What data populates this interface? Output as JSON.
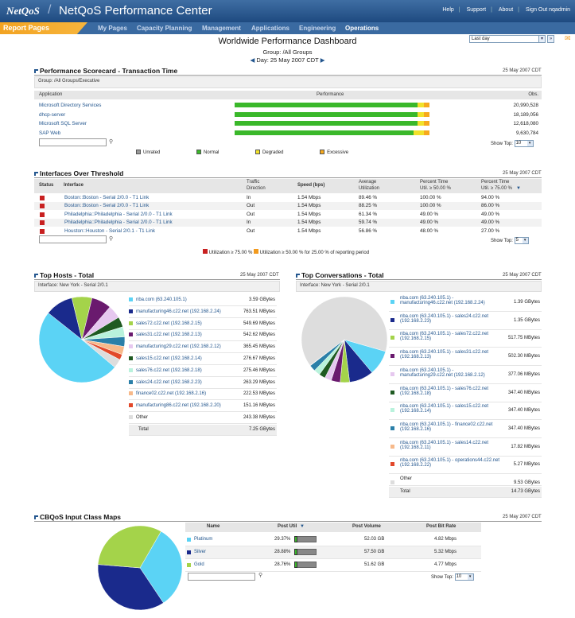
{
  "header": {
    "logo": "NetQoS",
    "title": "NetQoS Performance Center",
    "links": [
      "Help",
      "Support",
      "About",
      "Sign Out nqadmin"
    ]
  },
  "nav": {
    "report_pages": "Report Pages",
    "items": [
      "My Pages",
      "Capacity Planning",
      "Management",
      "Applications",
      "Engineering",
      "Operations"
    ],
    "active": "Operations",
    "timeframe": "Last day"
  },
  "dashboard": {
    "title": "Worldwide Performance Dashboard",
    "group": "Group: /All Groups",
    "day": "Day: 25 May 2007 CDT"
  },
  "scorecard": {
    "title": "Performance Scorecard - Transaction Time",
    "date": "25 May 2007 CDT",
    "group": "Group: /All Groups/Executive",
    "columns": [
      "Application",
      "Performance",
      "Obs."
    ],
    "rows": [
      {
        "app": "Microsoft Directory Services",
        "obs": "20,990,528",
        "normal": 0.94,
        "degraded": 0.03,
        "excessive": 0.03
      },
      {
        "app": "dhcp-server",
        "obs": "18,189,056",
        "normal": 0.94,
        "degraded": 0.03,
        "excessive": 0.03
      },
      {
        "app": "Microsoft SQL Server",
        "obs": "12,618,080",
        "normal": 0.94,
        "degraded": 0.03,
        "excessive": 0.03
      },
      {
        "app": "SAP Web",
        "obs": "9,630,784",
        "normal": 0.92,
        "degraded": 0.05,
        "excessive": 0.03
      }
    ],
    "show_top_label": "Show Top:",
    "show_top": "10",
    "legend": [
      {
        "label": "Unrated",
        "color": "#999999"
      },
      {
        "label": "Normal",
        "color": "#3ab82a"
      },
      {
        "label": "Degraded",
        "color": "#f1e12b"
      },
      {
        "label": "Excessive",
        "color": "#f7a91c"
      }
    ]
  },
  "interfaces": {
    "title": "Interfaces Over Threshold",
    "date": "25 May 2007 CDT",
    "columns": {
      "status": "Status",
      "interface": "Interface",
      "dir1": "Traffic",
      "dir2": "Direction",
      "speed": "Speed (bps)",
      "util1": "Average",
      "util2": "Utilization",
      "p50a": "Percent Time",
      "p50b": "Util. ≥ 50.00 %",
      "p75a": "Percent Time",
      "p75b": "Util. ≥ 75.00 %"
    },
    "rows": [
      {
        "iface": "Boston::Boston - Serial 2/0.0 - T1 Link",
        "dir": "In",
        "speed": "1.54 Mbps",
        "util": "89.46 %",
        "p50": "100.00 %",
        "p75": "94.00 %"
      },
      {
        "iface": "Boston::Boston - Serial 2/0.0 - T1 Link",
        "dir": "Out",
        "speed": "1.54 Mbps",
        "util": "88.25 %",
        "p50": "100.00 %",
        "p75": "86.00 %"
      },
      {
        "iface": "Philadelphia::Philadelphia - Serial 2/0.0 - T1 Link",
        "dir": "Out",
        "speed": "1.54 Mbps",
        "util": "61.34 %",
        "p50": "49.00 %",
        "p75": "49.00 %"
      },
      {
        "iface": "Philadelphia::Philadelphia - Serial 2/0.0 - T1 Link",
        "dir": "In",
        "speed": "1.54 Mbps",
        "util": "59.74 %",
        "p50": "49.00 %",
        "p75": "49.00 %"
      },
      {
        "iface": "Houston::Houston - Serial 2/0.1 - T1 Link",
        "dir": "Out",
        "speed": "1.54 Mbps",
        "util": "56.86 %",
        "p50": "48.00 %",
        "p75": "27.00 %"
      }
    ],
    "show_top_label": "Show Top:",
    "show_top": "5",
    "footnote_a": "Utilization ≥ 75.00 %",
    "footnote_b": "Utilization ≥ 50.00 % for 25.00 % of reporting period"
  },
  "top_hosts": {
    "title": "Top Hosts - Total",
    "date": "25 May 2007 CDT",
    "interface": "Interface: New York - Serial 2/0.1",
    "rows": [
      {
        "name": "nba.com (63.240.105.1)",
        "value": "3.59 GBytes",
        "color": "#5bd3f5",
        "v": 3590
      },
      {
        "name": "manufacturing46.c22.net (192.168.2.24)",
        "value": "763.51 MBytes",
        "color": "#1a2a8c",
        "v": 763.51
      },
      {
        "name": "sales72.c22.net (192.168.2.15)",
        "value": "549.69 MBytes",
        "color": "#a4d34a",
        "v": 549.69
      },
      {
        "name": "sales31.c22.net (192.168.2.13)",
        "value": "542.62 MBytes",
        "color": "#6a1a6e",
        "v": 542.62
      },
      {
        "name": "manufacturing29.c22.net (192.168.2.12)",
        "value": "365.45 MBytes",
        "color": "#e6c8ef",
        "v": 365.45
      },
      {
        "name": "sales15.c22.net (192.168.2.14)",
        "value": "276.67 MBytes",
        "color": "#1f5a22",
        "v": 276.67
      },
      {
        "name": "sales76.c22.net (192.168.2.18)",
        "value": "275.46 MBytes",
        "color": "#b9f2dc",
        "v": 275.46
      },
      {
        "name": "sales24.c22.net (192.168.2.23)",
        "value": "263.29 MBytes",
        "color": "#2a7fa8",
        "v": 263.29
      },
      {
        "name": "finance02.c22.net (192.168.2.16)",
        "value": "222.53 MBytes",
        "color": "#f7b98a",
        "v": 222.53
      },
      {
        "name": "manufacturing86.c22.net (192.168.2.20)",
        "value": "151.16 MBytes",
        "color": "#e2482a",
        "v": 151.16
      },
      {
        "name": "Other",
        "value": "243.38 MBytes",
        "color": "#dddddd",
        "v": 243.38
      }
    ],
    "total_label": "Total",
    "total": "7.25 GBytes"
  },
  "top_conversations": {
    "title": "Top Conversations - Total",
    "date": "25 May 2007 CDT",
    "interface": "Interface: New York - Serial 2/0.1",
    "rows": [
      {
        "l1": "nba.com (63.240.105.1) -",
        "l2": "manufacturing46.c22.net (192.168.2.24)",
        "value": "1.39 GBytes",
        "color": "#5bd3f5",
        "v": 1390
      },
      {
        "l1": "nba.com (63.240.105.1) - sales24.c22.net",
        "l2": "(192.168.2.23)",
        "value": "1.35 GBytes",
        "color": "#1a2a8c",
        "v": 1350
      },
      {
        "l1": "nba.com (63.240.105.1) - sales72.c22.net",
        "l2": "(192.168.2.15)",
        "value": "517.75 MBytes",
        "color": "#a4d34a",
        "v": 517.75
      },
      {
        "l1": "nba.com (63.240.105.1) - sales31.c22.net",
        "l2": "(192.168.2.13)",
        "value": "502.30 MBytes",
        "color": "#6a1a6e",
        "v": 502.3
      },
      {
        "l1": "nba.com (63.240.105.1) -",
        "l2": "manufacturing29.c22.net (192.168.2.12)",
        "value": "377.06 MBytes",
        "color": "#e6c8ef",
        "v": 377.06
      },
      {
        "l1": "nba.com (63.240.105.1) - sales76.c22.net",
        "l2": "(192.168.2.18)",
        "value": "347.40 MBytes",
        "color": "#1f5a22",
        "v": 347.4
      },
      {
        "l1": "nba.com (63.240.105.1) - sales15.c22.net",
        "l2": "(192.168.2.14)",
        "value": "347.40 MBytes",
        "color": "#b9f2dc",
        "v": 347.4
      },
      {
        "l1": "nba.com (63.240.105.1) - finance02.c22.net",
        "l2": "(192.168.2.16)",
        "value": "347.40 MBytes",
        "color": "#2a7fa8",
        "v": 347.4
      },
      {
        "l1": "nba.com (63.240.105.1) - sales14.c22.net",
        "l2": "(192.168.2.11)",
        "value": "17.82 MBytes",
        "color": "#f7b98a",
        "v": 17.82
      },
      {
        "l1": "nba.com (63.240.105.1) - operations44.c22.net",
        "l2": "(192.168.2.22)",
        "value": "5.27 MBytes",
        "color": "#e2482a",
        "v": 5.27
      },
      {
        "l1": "Other",
        "l2": "",
        "value": "9.53 GBytes",
        "color": "#dddddd",
        "v": 9530
      }
    ],
    "total_label": "Total",
    "total": "14.73 GBytes"
  },
  "cbqos": {
    "title": "CBQoS Input Class Maps",
    "date": "25 May 2007 CDT",
    "columns": [
      "Name",
      "Post Util",
      "Post Volume",
      "Post Bit Rate"
    ],
    "rows": [
      {
        "name": "Platinum",
        "util": "29.37%",
        "volume": "52.03 GB",
        "rate": "4.82 Mbps",
        "color": "#5bd3f5",
        "u": 0.2937,
        "v": 52.03
      },
      {
        "name": "Silver",
        "util": "28.88%",
        "volume": "57.50 GB",
        "rate": "5.32 Mbps",
        "color": "#1a2a8c",
        "u": 0.2888,
        "v": 57.5
      },
      {
        "name": "Gold",
        "util": "28.76%",
        "volume": "51.62 GB",
        "rate": "4.77 Mbps",
        "color": "#a4d34a",
        "u": 0.2876,
        "v": 51.62
      }
    ],
    "show_top_label": "Show Top:",
    "show_top": "10"
  }
}
